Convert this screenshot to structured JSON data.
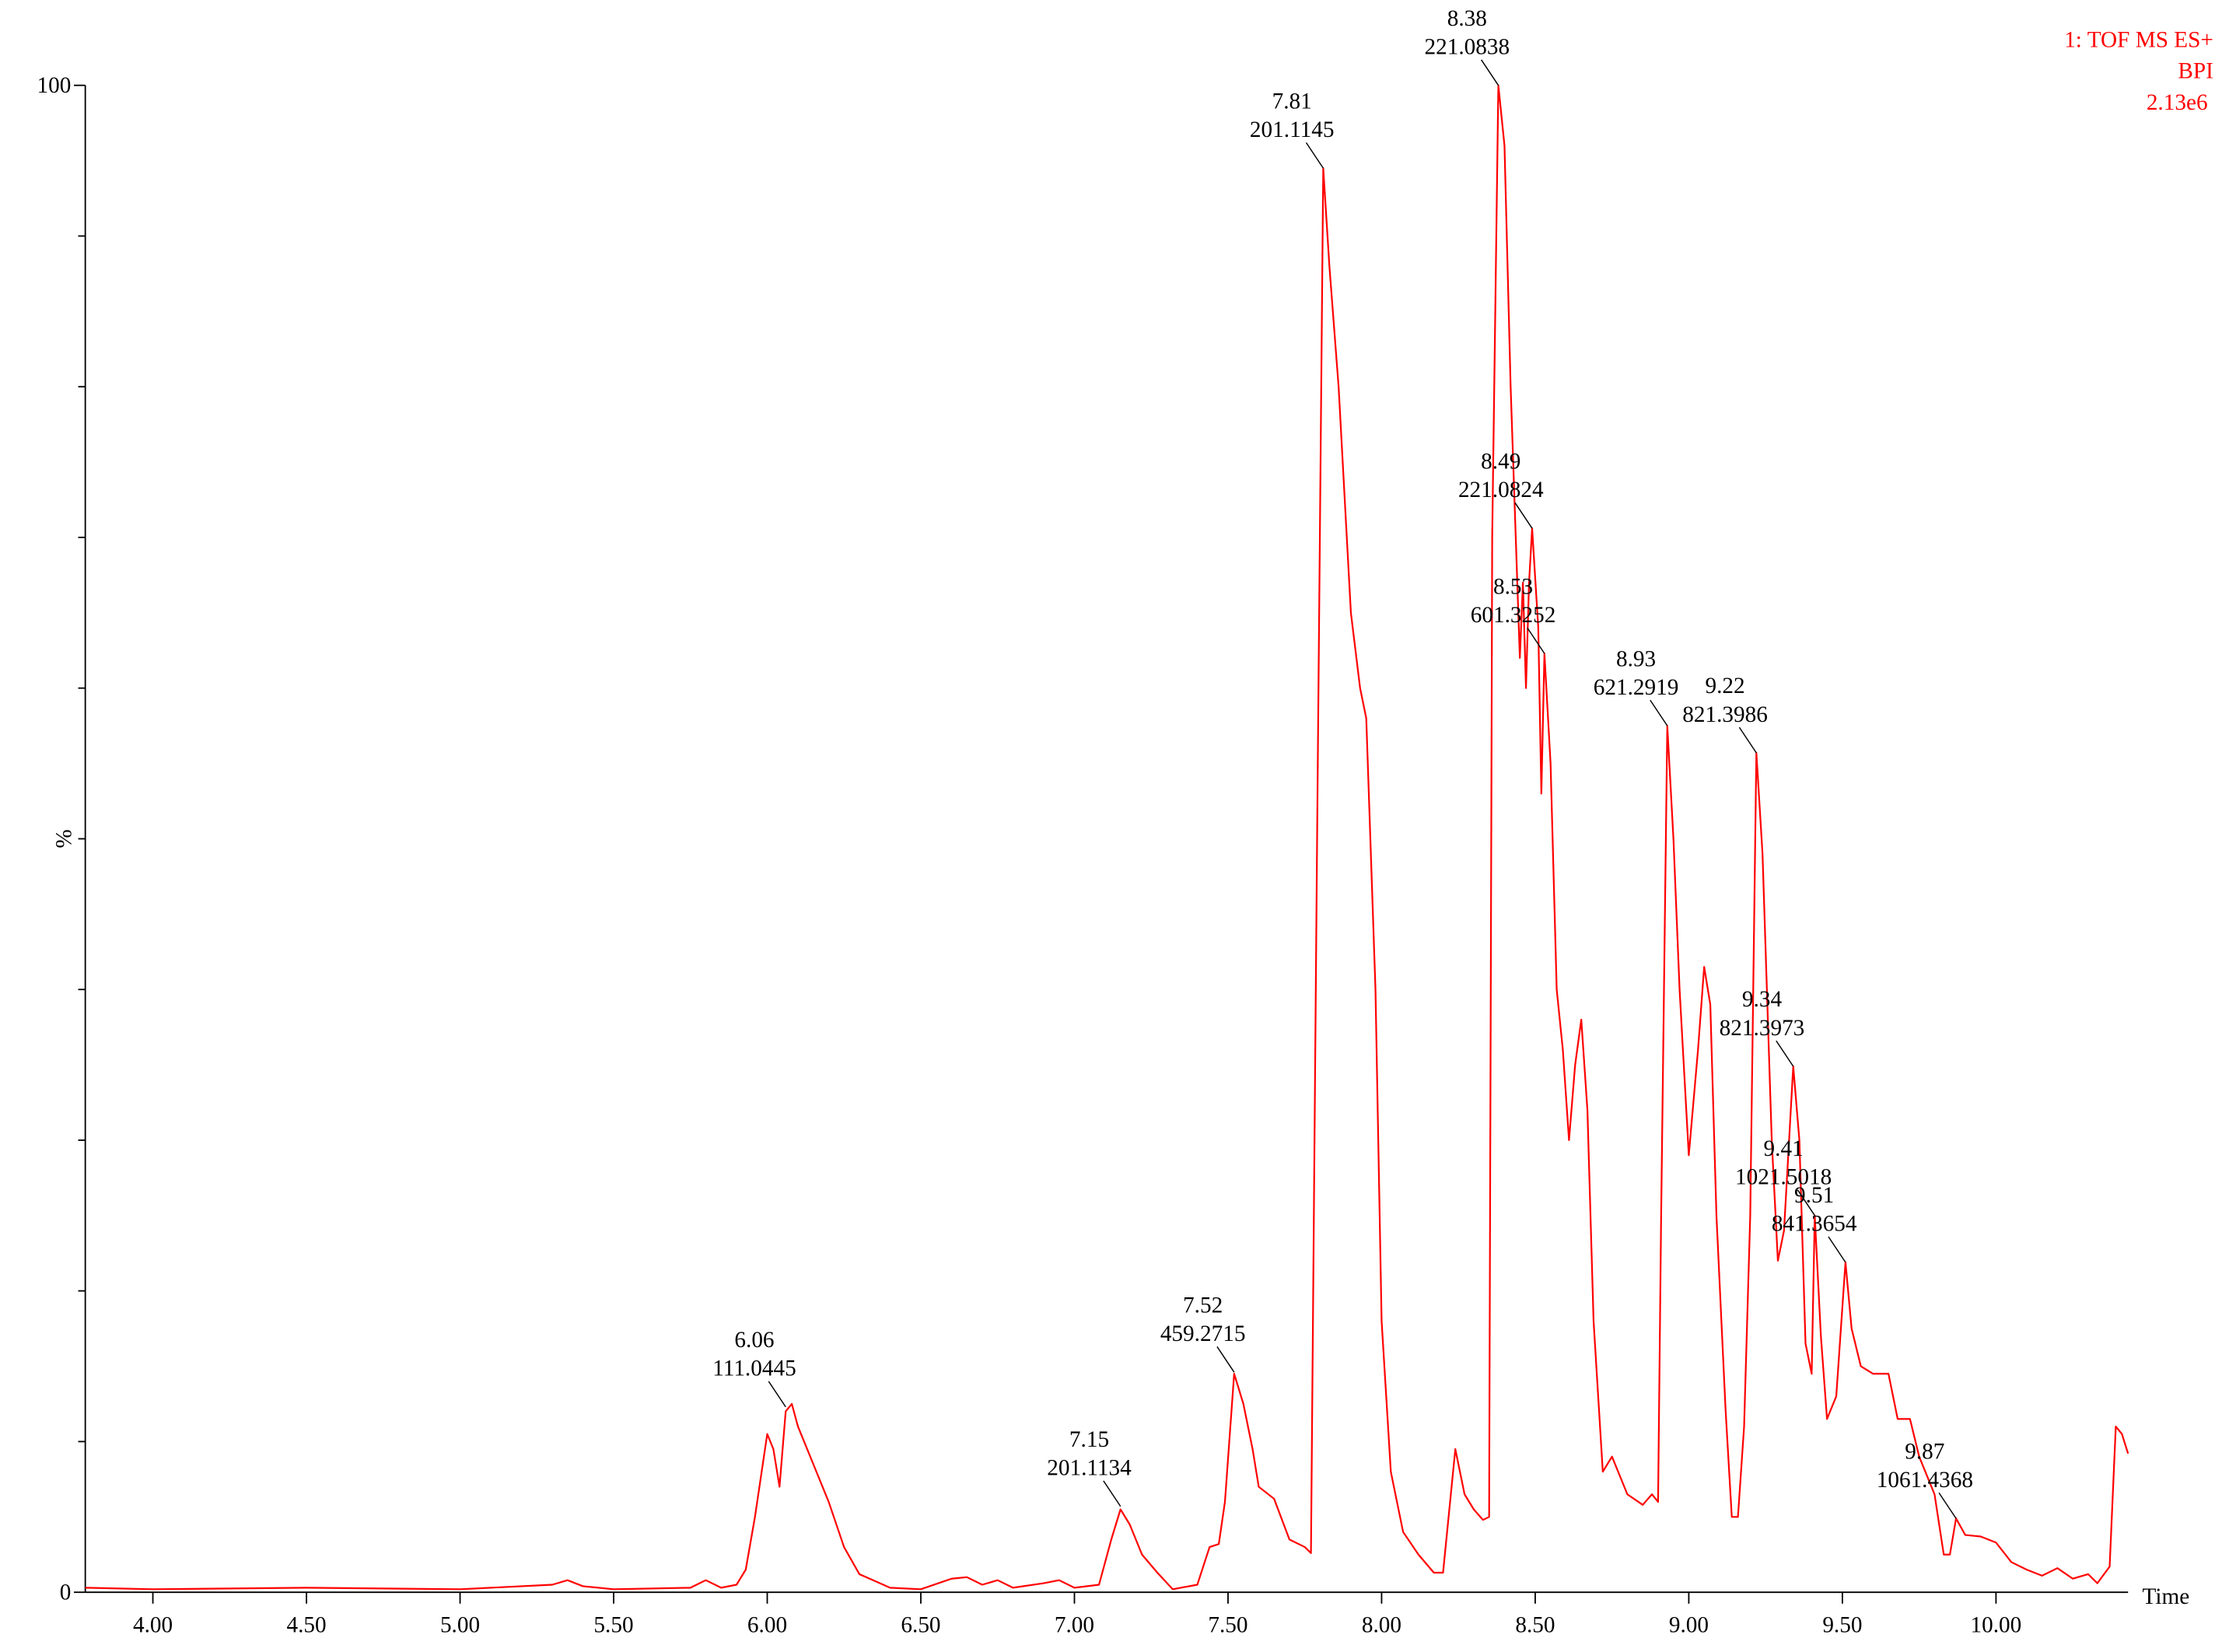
{
  "chart_data": {
    "type": "line",
    "title_lines": [
      "1: TOF MS ES+",
      "BPI",
      "2.13e6"
    ],
    "x_label": "Time",
    "y_label": "%",
    "xlim": [
      3.78,
      10.43
    ],
    "ylim": [
      0,
      100
    ],
    "xticks": [
      {
        "value": 4,
        "label": "4.00"
      },
      {
        "value": 4.5,
        "label": "4.50"
      },
      {
        "value": 5,
        "label": "5.00"
      },
      {
        "value": 5.5,
        "label": "5.50"
      },
      {
        "value": 6,
        "label": "6.00"
      },
      {
        "value": 6.5,
        "label": "6.50"
      },
      {
        "value": 7,
        "label": "7.00"
      },
      {
        "value": 7.5,
        "label": "7.50"
      },
      {
        "value": 8,
        "label": "8.00"
      },
      {
        "value": 8.5,
        "label": "8.50"
      },
      {
        "value": 9,
        "label": "9.00"
      },
      {
        "value": 9.5,
        "label": "9.50"
      },
      {
        "value": 10,
        "label": "10.00"
      }
    ],
    "yticks": [
      0,
      100
    ],
    "y_minor_ticks": [
      10,
      20,
      30,
      40,
      50,
      60,
      70,
      80,
      90
    ],
    "color": "#ff0000",
    "x": [
      3.78,
      4.0,
      4.5,
      5.0,
      5.3,
      5.35,
      5.4,
      5.5,
      5.75,
      5.8,
      5.85,
      5.9,
      5.93,
      5.96,
      6.0,
      6.02,
      6.04,
      6.06,
      6.08,
      6.1,
      6.12,
      6.15,
      6.2,
      6.25,
      6.3,
      6.4,
      6.5,
      6.6,
      6.65,
      6.7,
      6.75,
      6.8,
      6.9,
      6.95,
      7.0,
      7.08,
      7.12,
      7.15,
      7.18,
      7.22,
      7.27,
      7.32,
      7.4,
      7.44,
      7.47,
      7.49,
      7.52,
      7.55,
      7.58,
      7.6,
      7.65,
      7.7,
      7.75,
      7.77,
      7.79,
      7.81,
      7.83,
      7.86,
      7.9,
      7.93,
      7.95,
      7.98,
      8.0,
      8.03,
      8.07,
      8.12,
      8.17,
      8.2,
      8.24,
      8.27,
      8.3,
      8.33,
      8.35,
      8.36,
      8.38,
      8.4,
      8.42,
      8.45,
      8.46,
      8.47,
      8.48,
      8.49,
      8.51,
      8.52,
      8.53,
      8.55,
      8.57,
      8.59,
      8.61,
      8.63,
      8.65,
      8.67,
      8.69,
      8.72,
      8.75,
      8.78,
      8.8,
      8.85,
      8.88,
      8.9,
      8.91,
      8.93,
      8.95,
      8.97,
      9.0,
      9.03,
      9.05,
      9.07,
      9.09,
      9.12,
      9.14,
      9.16,
      9.18,
      9.2,
      9.22,
      9.24,
      9.27,
      9.29,
      9.31,
      9.34,
      9.36,
      9.38,
      9.4,
      9.41,
      9.43,
      9.45,
      9.48,
      9.51,
      9.53,
      9.56,
      9.6,
      9.65,
      9.68,
      9.72,
      9.75,
      9.8,
      9.83,
      9.85,
      9.87,
      9.9,
      9.95,
      10.0,
      10.05,
      10.1,
      10.15,
      10.2,
      10.25,
      10.3,
      10.33,
      10.37,
      10.39,
      10.41,
      10.43
    ],
    "values": [
      0.3,
      0.2,
      0.3,
      0.2,
      0.5,
      0.8,
      0.4,
      0.2,
      0.3,
      0.8,
      0.3,
      0.5,
      1.5,
      5,
      10.5,
      9.5,
      7,
      12,
      12.5,
      11,
      10,
      8.5,
      6,
      3,
      1.2,
      0.3,
      0.2,
      0.9,
      1.0,
      0.5,
      0.8,
      0.3,
      0.6,
      0.8,
      0.3,
      0.5,
      3.5,
      5.5,
      4.5,
      2.5,
      1.3,
      0.2,
      0.5,
      3,
      3.2,
      6,
      14.5,
      12.5,
      9.5,
      7,
      6.2,
      3.5,
      3,
      2.6,
      50,
      94.5,
      88,
      80,
      65,
      60,
      58,
      40,
      18,
      8,
      4,
      2.5,
      1.3,
      1.3,
      9.5,
      6.5,
      5.5,
      4.8,
      5,
      70,
      100,
      96,
      80,
      62,
      67,
      60,
      67,
      70.6,
      64,
      53,
      62.3,
      55,
      40,
      36,
      30,
      35,
      38,
      32,
      18,
      8,
      9,
      7.5,
      6.5,
      5.8,
      6.5,
      6,
      25,
      57.5,
      50,
      40,
      29,
      36,
      41.5,
      39,
      25,
      12,
      5,
      5,
      11,
      25,
      55.7,
      49,
      30,
      22,
      24,
      34.9,
      30,
      16.5,
      14.5,
      25,
      17,
      11.5,
      13,
      21.9,
      17.5,
      15,
      14.5,
      14.5,
      11.5,
      11.5,
      9,
      6.5,
      2.5,
      2.5,
      4.9,
      3.8,
      3.7,
      3.3,
      2,
      1.5,
      1.1,
      1.6,
      0.9,
      1.2,
      0.6,
      1.7,
      11,
      10.5,
      9.2
    ],
    "annotations": [
      {
        "x": 6.06,
        "y": 12.3,
        "mz": "111.0445"
      },
      {
        "x": 7.15,
        "y": 5.7,
        "mz": "201.1134"
      },
      {
        "x": 7.52,
        "y": 14.6,
        "mz": "459.2715"
      },
      {
        "x": 7.81,
        "y": 94.5,
        "mz": "201.1145"
      },
      {
        "x": 8.38,
        "y": 100,
        "mz": "221.0838"
      },
      {
        "x": 8.49,
        "y": 70.6,
        "mz": "221.0824"
      },
      {
        "x": 8.53,
        "y": 62.3,
        "mz": "601.3252"
      },
      {
        "x": 8.93,
        "y": 57.5,
        "mz": "621.2919"
      },
      {
        "x": 9.22,
        "y": 55.7,
        "mz": "821.3986"
      },
      {
        "x": 9.34,
        "y": 34.9,
        "mz": "821.3973"
      },
      {
        "x": 9.41,
        "y": 25,
        "mz": "1021.5018"
      },
      {
        "x": 9.51,
        "y": 21.9,
        "mz": "841.3654"
      },
      {
        "x": 9.87,
        "y": 4.9,
        "mz": "1061.4368"
      }
    ]
  }
}
